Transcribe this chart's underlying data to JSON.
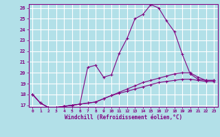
{
  "xlabel": "Windchill (Refroidissement éolien,°C)",
  "background_color": "#b2e0e8",
  "line_color": "#800080",
  "grid_color": "#ffffff",
  "xmin": 0,
  "xmax": 23,
  "ymin": 17,
  "ymax": 26,
  "series": [
    {
      "x": [
        0,
        1,
        2,
        3,
        4,
        5,
        6,
        7,
        8,
        9,
        10,
        11,
        12,
        13,
        14,
        15,
        16,
        17,
        18,
        19,
        20,
        21,
        22,
        23
      ],
      "y": [
        18.0,
        17.2,
        16.8,
        16.8,
        16.9,
        17.0,
        17.1,
        20.5,
        20.7,
        19.6,
        19.8,
        21.8,
        23.2,
        25.0,
        25.4,
        26.3,
        26.0,
        24.8,
        23.8,
        21.7,
        19.9,
        19.4,
        19.3,
        19.3
      ]
    },
    {
      "x": [
        0,
        1,
        2,
        3,
        4,
        5,
        6,
        7,
        8,
        9,
        10,
        11,
        12,
        13,
        14,
        15,
        16,
        17,
        18,
        19,
        20,
        21,
        22,
        23
      ],
      "y": [
        18.0,
        17.2,
        16.8,
        16.8,
        16.9,
        17.0,
        17.1,
        17.2,
        17.3,
        17.6,
        17.9,
        18.2,
        18.5,
        18.8,
        19.1,
        19.3,
        19.5,
        19.7,
        19.9,
        20.0,
        20.0,
        19.6,
        19.3,
        19.3
      ]
    },
    {
      "x": [
        0,
        1,
        2,
        3,
        4,
        5,
        6,
        7,
        8,
        9,
        10,
        11,
        12,
        13,
        14,
        15,
        16,
        17,
        18,
        19,
        20,
        21,
        22,
        23
      ],
      "y": [
        18.0,
        17.2,
        16.8,
        16.8,
        16.9,
        17.0,
        17.1,
        17.2,
        17.3,
        17.6,
        17.9,
        18.1,
        18.3,
        18.5,
        18.7,
        18.9,
        19.1,
        19.2,
        19.3,
        19.4,
        19.4,
        19.3,
        19.2,
        19.2
      ]
    }
  ],
  "yticks": [
    17,
    18,
    19,
    20,
    21,
    22,
    23,
    24,
    25,
    26
  ],
  "xticks": [
    0,
    1,
    2,
    3,
    4,
    5,
    6,
    7,
    8,
    9,
    10,
    11,
    12,
    13,
    14,
    15,
    16,
    17,
    18,
    19,
    20,
    21,
    22,
    23
  ]
}
